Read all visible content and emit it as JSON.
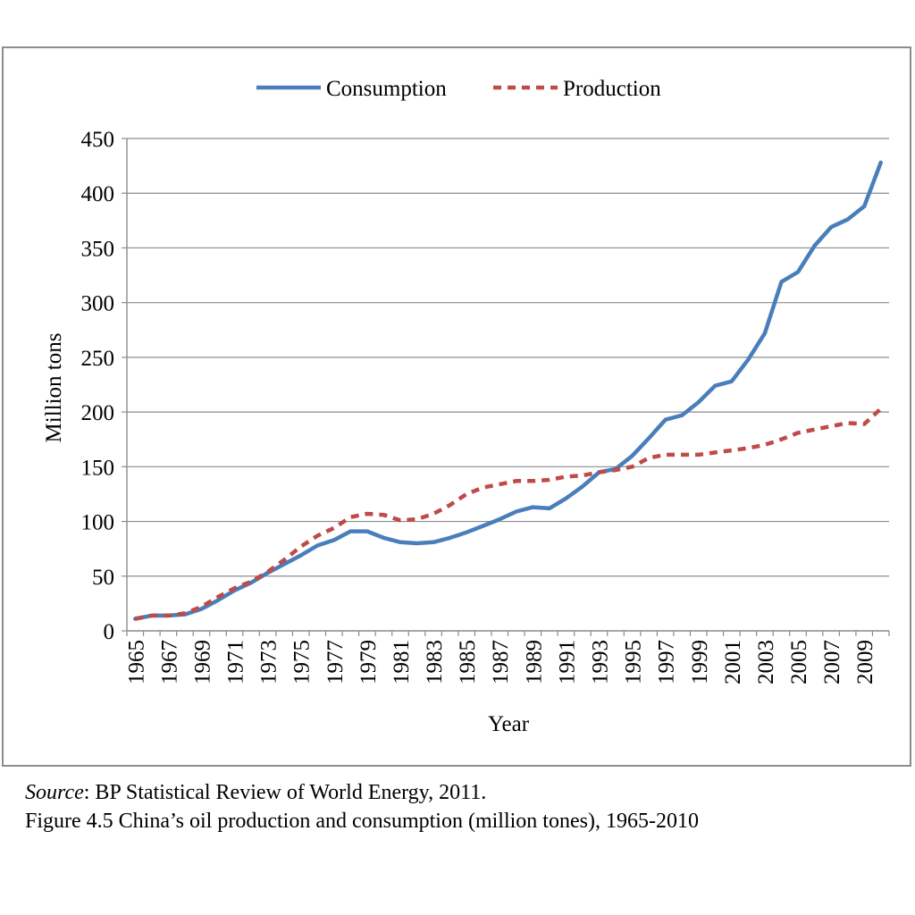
{
  "chart_data": {
    "type": "line",
    "x": [
      1965,
      1966,
      1967,
      1968,
      1969,
      1970,
      1971,
      1972,
      1973,
      1974,
      1975,
      1976,
      1977,
      1978,
      1979,
      1980,
      1981,
      1982,
      1983,
      1984,
      1985,
      1986,
      1987,
      1988,
      1989,
      1990,
      1991,
      1992,
      1993,
      1994,
      1995,
      1996,
      1997,
      1998,
      1999,
      2000,
      2001,
      2002,
      2003,
      2004,
      2005,
      2006,
      2007,
      2008,
      2009,
      2010
    ],
    "series": [
      {
        "name": "Consumption",
        "color": "#4a7ebb",
        "dash": "solid",
        "values": [
          11,
          14,
          14,
          15,
          20,
          28,
          37,
          44,
          53,
          61,
          69,
          78,
          83,
          91,
          91,
          85,
          81,
          80,
          81,
          85,
          90,
          96,
          102,
          109,
          113,
          112,
          121,
          132,
          145,
          148,
          160,
          176,
          193,
          197,
          209,
          224,
          228,
          248,
          272,
          319,
          328,
          352,
          369,
          376,
          388,
          428
        ]
      },
      {
        "name": "Production",
        "color": "#be4b48",
        "dash": "dashed",
        "values": [
          11,
          14,
          14,
          16,
          22,
          31,
          39,
          45,
          54,
          65,
          77,
          87,
          94,
          104,
          107,
          106,
          101,
          102,
          107,
          115,
          125,
          131,
          134,
          137,
          137,
          138,
          141,
          142,
          145,
          147,
          150,
          158,
          161,
          161,
          161,
          163,
          165,
          167,
          170,
          175,
          181,
          184,
          187,
          190,
          189,
          203
        ]
      }
    ],
    "title": "",
    "xlabel": "Year",
    "ylabel": "Million tons",
    "ylim": [
      0,
      450
    ],
    "yticks": [
      "0",
      "50",
      "100",
      "150",
      "200",
      "250",
      "300",
      "350",
      "400",
      "450"
    ],
    "xtick_labels": [
      "1965",
      "1967",
      "1969",
      "1971",
      "1973",
      "1975",
      "1977",
      "1979",
      "1981",
      "1983",
      "1985",
      "1987",
      "1989",
      "1991",
      "1993",
      "1995",
      "1997",
      "1999",
      "2001",
      "2003",
      "2005",
      "2007",
      "2009"
    ],
    "grid": true,
    "legend_position": "top"
  },
  "caption": {
    "source_label": "Source",
    "source_text": ": BP Statistical Review of World Energy, 2011.",
    "figure_text": "Figure 4.5 China’s oil production and consumption (million tones), 1965-2010"
  }
}
